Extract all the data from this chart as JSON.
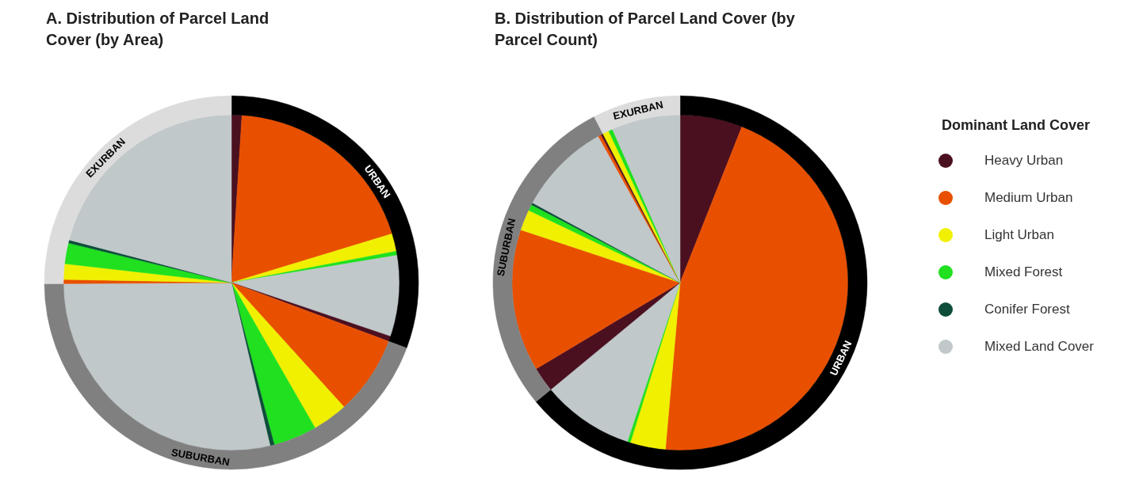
{
  "chart_data": [
    {
      "type": "pie",
      "title": "A.  Distribution of Parcel Land Cover (by Area)",
      "categories": [
        null,
        null,
        null,
        null,
        null,
        null,
        null,
        null,
        null,
        null,
        null,
        null,
        null,
        null,
        null,
        null
      ],
      "values": [
        1,
        19.3,
        1.7,
        0.4,
        7.8,
        0.5,
        7.6,
        3.4,
        4.2,
        0.4,
        28.6,
        0.4,
        1.5,
        2,
        0.3,
        20.9
      ],
      "colors": [
        "#4b1020",
        "#e85000",
        "#f0f000",
        "#20e020",
        "#c0c8ca",
        "#4b1020",
        "#e85000",
        "#f0f000",
        "#20e020",
        "#0d4d3a",
        "#c0c8ca",
        "#e85000",
        "#f0f000",
        "#20e020",
        "#0d4d3a",
        "#c0c8ca"
      ]
    },
    {
      "type": "donut",
      "categories": [
        "URBAN",
        "SUBURBAN",
        "EXURBAN"
      ],
      "values": [
        30.7,
        44.2,
        25.1
      ],
      "colors": [
        "#000000",
        "#808080",
        "#dcdcdc"
      ]
    },
    {
      "type": "pie",
      "title": "B.  Distribution of Parcel Land Cover (by Parcel Count)",
      "categories": [
        null,
        null,
        null,
        null,
        null,
        null,
        null,
        null,
        null,
        null,
        null,
        null,
        null,
        null,
        null,
        null
      ],
      "values": [
        6,
        45.4,
        3.4,
        0.3,
        8.9,
        2.4,
        13.7,
        2,
        0.6,
        0.2,
        9,
        0.3,
        0.2,
        0.6,
        0.4,
        6.6
      ],
      "colors": [
        "#4b1020",
        "#e85000",
        "#f0f000",
        "#20e020",
        "#c0c8ca",
        "#4b1020",
        "#e85000",
        "#f0f000",
        "#20e020",
        "#0d4d3a",
        "#c0c8ca",
        "#e85000",
        "#4b1020",
        "#f0f000",
        "#20e020",
        "#c0c8ca"
      ]
    },
    {
      "type": "donut",
      "categories": [
        "URBAN",
        "SUBURBAN",
        "EXURBAN"
      ],
      "values": [
        64,
        28.4,
        7.6
      ],
      "colors": [
        "#000000",
        "#808080",
        "#dcdcdc"
      ]
    },
    {
      "type": "other",
      "legend": "right",
      "legend_title": "Dominant Land Cover",
      "series": [
        {
          "name": "Heavy Urban",
          "color": "#4b1020"
        },
        {
          "name": "Medium Urban",
          "color": "#e85000"
        },
        {
          "name": "Light Urban",
          "color": "#f0f000"
        },
        {
          "name": "Mixed Forest",
          "color": "#20e020"
        },
        {
          "name": "Conifer Forest",
          "color": "#0d4d3a"
        },
        {
          "name": "Mixed Land Cover",
          "color": "#c0c8ca"
        }
      ]
    }
  ]
}
